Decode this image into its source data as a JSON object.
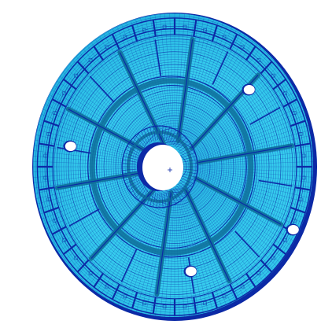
{
  "viewport": {
    "background": "#ffffff"
  },
  "model": {
    "mesh_color_light": "#3fd5ee",
    "mesh_color_mid": "#1aa9d4",
    "mesh_line_color": "#0c2aa6",
    "rib_color": "#0e6f9a",
    "hole_fill": "#ffffff",
    "ring_dividers": 36,
    "outer_slots": 40,
    "spokes": 10,
    "bolt_holes": 4
  },
  "origin_marker": {
    "icon": "crosshair-icon"
  }
}
